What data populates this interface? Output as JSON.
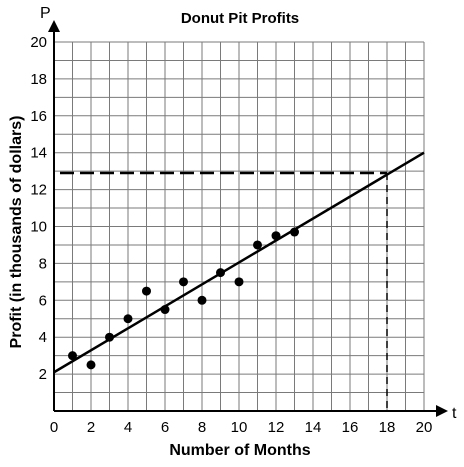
{
  "chart_data": {
    "type": "scatter",
    "title": "Donut Pit Profits",
    "xlabel": "Number of Months",
    "ylabel": "Profit (in thousands of dollars)",
    "x_axis_letter": "t",
    "y_axis_letter": "P",
    "xlim": [
      0,
      20
    ],
    "ylim": [
      0,
      20
    ],
    "grid": true,
    "x_ticks": [
      "0",
      "2",
      "4",
      "6",
      "8",
      "10",
      "12",
      "14",
      "16",
      "18",
      "20"
    ],
    "y_ticks": [
      "2",
      "4",
      "6",
      "8",
      "10",
      "12",
      "14",
      "16",
      "18",
      "20"
    ],
    "points": [
      {
        "x": 1,
        "y": 3
      },
      {
        "x": 2,
        "y": 2.5
      },
      {
        "x": 3,
        "y": 4
      },
      {
        "x": 4,
        "y": 5
      },
      {
        "x": 5,
        "y": 6.5
      },
      {
        "x": 6,
        "y": 5.5
      },
      {
        "x": 7,
        "y": 7
      },
      {
        "x": 8,
        "y": 6
      },
      {
        "x": 9,
        "y": 7.5
      },
      {
        "x": 10,
        "y": 7
      },
      {
        "x": 11,
        "y": 9
      },
      {
        "x": 12,
        "y": 9.5
      },
      {
        "x": 13,
        "y": 9.7
      }
    ],
    "trend_line": {
      "x0": 0,
      "y0": 2.1,
      "x1": 20,
      "y1": 14
    },
    "reference_point": {
      "x": 18,
      "y": 12.9
    }
  }
}
